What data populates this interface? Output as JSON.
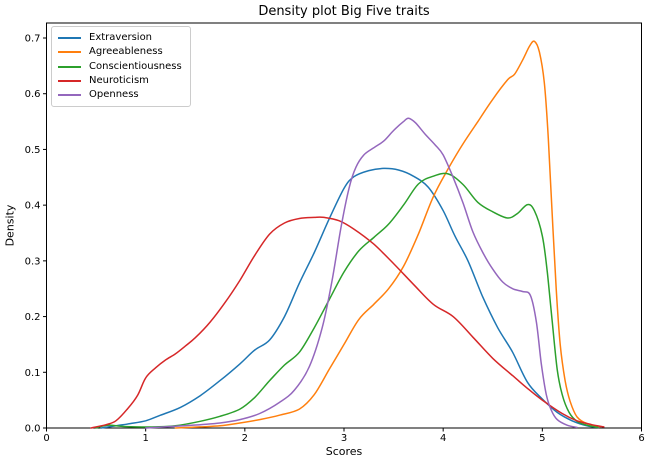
{
  "figure": {
    "title": "Density plot Big Five traits",
    "xlabel": "Scores",
    "ylabel": "Density"
  },
  "legend": {
    "position": "upper left",
    "items": [
      {
        "label": "Extraversion"
      },
      {
        "label": "Agreeableness"
      },
      {
        "label": "Conscientiousness"
      },
      {
        "label": "Neuroticism"
      },
      {
        "label": "Openness"
      }
    ]
  },
  "chart_data": {
    "type": "line",
    "subtype": "kde-density",
    "title": "Density plot Big Five traits",
    "xlabel": "Scores",
    "ylabel": "Density",
    "xlim": [
      0,
      6
    ],
    "ylim": [
      0,
      0.727
    ],
    "xticks": [
      0,
      1,
      2,
      3,
      4,
      5,
      6
    ],
    "yticks": [
      0.0,
      0.1,
      0.2,
      0.3,
      0.4,
      0.5,
      0.6,
      0.7
    ],
    "grid": false,
    "legend_position": "upper left",
    "frame_color": "#000000",
    "series": [
      {
        "name": "Extraversion",
        "color": "#1f77b4",
        "peak": {
          "x": 3.4,
          "y": 0.466
        },
        "points": [
          [
            0.55,
            0
          ],
          [
            0.7,
            0.004
          ],
          [
            0.85,
            0.008
          ],
          [
            1.0,
            0.013
          ],
          [
            1.15,
            0.023
          ],
          [
            1.35,
            0.037
          ],
          [
            1.55,
            0.058
          ],
          [
            1.75,
            0.085
          ],
          [
            1.95,
            0.115
          ],
          [
            2.1,
            0.14
          ],
          [
            2.25,
            0.158
          ],
          [
            2.4,
            0.2
          ],
          [
            2.55,
            0.26
          ],
          [
            2.7,
            0.315
          ],
          [
            2.85,
            0.375
          ],
          [
            3.0,
            0.43
          ],
          [
            3.1,
            0.451
          ],
          [
            3.25,
            0.462
          ],
          [
            3.4,
            0.466
          ],
          [
            3.55,
            0.463
          ],
          [
            3.7,
            0.452
          ],
          [
            3.85,
            0.432
          ],
          [
            4.0,
            0.39
          ],
          [
            4.12,
            0.344
          ],
          [
            4.25,
            0.3
          ],
          [
            4.4,
            0.235
          ],
          [
            4.55,
            0.18
          ],
          [
            4.7,
            0.136
          ],
          [
            4.85,
            0.082
          ],
          [
            5.0,
            0.052
          ],
          [
            5.15,
            0.028
          ],
          [
            5.3,
            0.013
          ],
          [
            5.45,
            0.004
          ],
          [
            5.57,
            0.001
          ]
        ]
      },
      {
        "name": "Agreeableness",
        "color": "#ff7f0e",
        "peak": {
          "x": 4.92,
          "y": 0.694
        },
        "points": [
          [
            1.3,
            0
          ],
          [
            1.55,
            0.002
          ],
          [
            1.75,
            0.004
          ],
          [
            1.95,
            0.009
          ],
          [
            2.15,
            0.015
          ],
          [
            2.35,
            0.023
          ],
          [
            2.55,
            0.034
          ],
          [
            2.7,
            0.06
          ],
          [
            2.85,
            0.105
          ],
          [
            3.0,
            0.15
          ],
          [
            3.15,
            0.195
          ],
          [
            3.3,
            0.222
          ],
          [
            3.45,
            0.25
          ],
          [
            3.6,
            0.29
          ],
          [
            3.75,
            0.348
          ],
          [
            3.9,
            0.415
          ],
          [
            4.05,
            0.465
          ],
          [
            4.2,
            0.51
          ],
          [
            4.35,
            0.55
          ],
          [
            4.5,
            0.59
          ],
          [
            4.65,
            0.625
          ],
          [
            4.72,
            0.635
          ],
          [
            4.8,
            0.66
          ],
          [
            4.87,
            0.685
          ],
          [
            4.92,
            0.694
          ],
          [
            4.97,
            0.675
          ],
          [
            5.02,
            0.62
          ],
          [
            5.06,
            0.52
          ],
          [
            5.1,
            0.38
          ],
          [
            5.14,
            0.25
          ],
          [
            5.18,
            0.15
          ],
          [
            5.23,
            0.085
          ],
          [
            5.28,
            0.048
          ],
          [
            5.35,
            0.02
          ],
          [
            5.45,
            0.008
          ],
          [
            5.58,
            0.002
          ]
        ]
      },
      {
        "name": "Conscientiousness",
        "color": "#2ca02c",
        "peak": {
          "x": 4.05,
          "y": 0.456
        },
        "points": [
          [
            0.5,
            0
          ],
          [
            0.58,
            0.004
          ],
          [
            0.65,
            0.005
          ],
          [
            0.75,
            0.003
          ],
          [
            0.9,
            0.002
          ],
          [
            1.1,
            0.002
          ],
          [
            1.3,
            0.004
          ],
          [
            1.55,
            0.012
          ],
          [
            1.75,
            0.021
          ],
          [
            1.95,
            0.034
          ],
          [
            2.1,
            0.055
          ],
          [
            2.25,
            0.085
          ],
          [
            2.4,
            0.113
          ],
          [
            2.55,
            0.136
          ],
          [
            2.7,
            0.18
          ],
          [
            2.85,
            0.23
          ],
          [
            3.0,
            0.28
          ],
          [
            3.15,
            0.318
          ],
          [
            3.3,
            0.342
          ],
          [
            3.45,
            0.366
          ],
          [
            3.6,
            0.4
          ],
          [
            3.75,
            0.438
          ],
          [
            3.9,
            0.452
          ],
          [
            4.05,
            0.456
          ],
          [
            4.2,
            0.437
          ],
          [
            4.35,
            0.405
          ],
          [
            4.5,
            0.388
          ],
          [
            4.65,
            0.377
          ],
          [
            4.75,
            0.385
          ],
          [
            4.85,
            0.401
          ],
          [
            4.92,
            0.39
          ],
          [
            5.0,
            0.345
          ],
          [
            5.05,
            0.28
          ],
          [
            5.1,
            0.19
          ],
          [
            5.15,
            0.105
          ],
          [
            5.2,
            0.06
          ],
          [
            5.27,
            0.028
          ],
          [
            5.35,
            0.012
          ],
          [
            5.45,
            0.005
          ],
          [
            5.56,
            0.001
          ]
        ]
      },
      {
        "name": "Neuroticism",
        "color": "#d62728",
        "peak": {
          "x": 2.8,
          "y": 0.378
        },
        "points": [
          [
            0.45,
            0
          ],
          [
            0.6,
            0.006
          ],
          [
            0.7,
            0.013
          ],
          [
            0.82,
            0.035
          ],
          [
            0.92,
            0.059
          ],
          [
            1.0,
            0.09
          ],
          [
            1.1,
            0.108
          ],
          [
            1.2,
            0.122
          ],
          [
            1.3,
            0.133
          ],
          [
            1.4,
            0.147
          ],
          [
            1.5,
            0.162
          ],
          [
            1.65,
            0.19
          ],
          [
            1.8,
            0.225
          ],
          [
            1.95,
            0.265
          ],
          [
            2.1,
            0.31
          ],
          [
            2.25,
            0.348
          ],
          [
            2.4,
            0.368
          ],
          [
            2.55,
            0.376
          ],
          [
            2.7,
            0.378
          ],
          [
            2.8,
            0.378
          ],
          [
            2.95,
            0.372
          ],
          [
            3.1,
            0.357
          ],
          [
            3.3,
            0.33
          ],
          [
            3.5,
            0.295
          ],
          [
            3.7,
            0.258
          ],
          [
            3.9,
            0.222
          ],
          [
            4.1,
            0.2
          ],
          [
            4.3,
            0.163
          ],
          [
            4.5,
            0.125
          ],
          [
            4.7,
            0.094
          ],
          [
            4.85,
            0.071
          ],
          [
            5.0,
            0.05
          ],
          [
            5.2,
            0.026
          ],
          [
            5.35,
            0.013
          ],
          [
            5.5,
            0.006
          ],
          [
            5.62,
            0.002
          ]
        ]
      },
      {
        "name": "Openness",
        "color": "#9467bd",
        "peak": {
          "x": 3.65,
          "y": 0.556
        },
        "points": [
          [
            1.0,
            0
          ],
          [
            1.3,
            0.003
          ],
          [
            1.55,
            0.006
          ],
          [
            1.75,
            0.009
          ],
          [
            1.95,
            0.015
          ],
          [
            2.15,
            0.026
          ],
          [
            2.35,
            0.046
          ],
          [
            2.5,
            0.068
          ],
          [
            2.65,
            0.11
          ],
          [
            2.78,
            0.18
          ],
          [
            2.88,
            0.265
          ],
          [
            2.97,
            0.36
          ],
          [
            3.05,
            0.43
          ],
          [
            3.12,
            0.468
          ],
          [
            3.2,
            0.49
          ],
          [
            3.3,
            0.503
          ],
          [
            3.4,
            0.515
          ],
          [
            3.5,
            0.534
          ],
          [
            3.6,
            0.55
          ],
          [
            3.65,
            0.556
          ],
          [
            3.72,
            0.548
          ],
          [
            3.82,
            0.527
          ],
          [
            3.92,
            0.508
          ],
          [
            4.0,
            0.49
          ],
          [
            4.1,
            0.45
          ],
          [
            4.2,
            0.404
          ],
          [
            4.3,
            0.352
          ],
          [
            4.4,
            0.315
          ],
          [
            4.5,
            0.285
          ],
          [
            4.6,
            0.262
          ],
          [
            4.7,
            0.25
          ],
          [
            4.8,
            0.245
          ],
          [
            4.88,
            0.238
          ],
          [
            4.94,
            0.19
          ],
          [
            4.99,
            0.115
          ],
          [
            5.04,
            0.06
          ],
          [
            5.09,
            0.032
          ],
          [
            5.15,
            0.015
          ],
          [
            5.25,
            0.005
          ],
          [
            5.35,
            0.001
          ]
        ]
      }
    ]
  }
}
